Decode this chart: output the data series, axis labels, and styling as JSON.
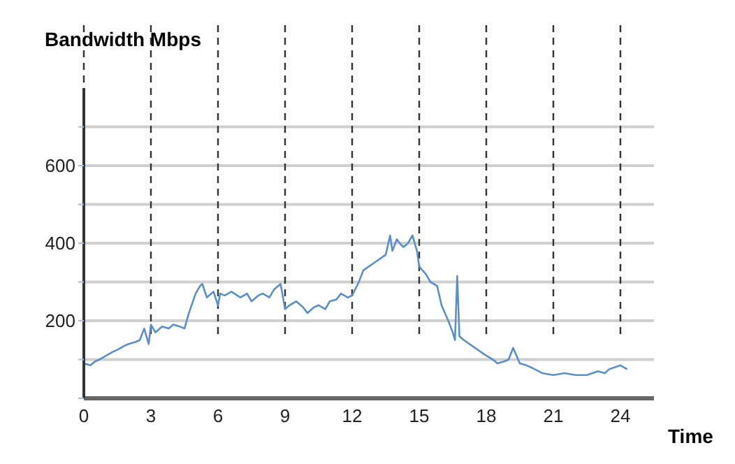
{
  "chart_data": {
    "type": "line",
    "ylabel": "Bandwidth Mbps",
    "xlabel": "Time",
    "grid": true,
    "marker": "none",
    "line_style": "solid",
    "xlim": [
      0,
      25.5
    ],
    "xticks": [
      0,
      3,
      6,
      9,
      12,
      15,
      18,
      21,
      24
    ],
    "ylim": [
      0,
      800
    ],
    "yticks": [
      {
        "value": 0,
        "label": null
      },
      {
        "value": 100,
        "label": null
      },
      200,
      {
        "value": 300,
        "label": null
      },
      400,
      {
        "value": 500,
        "label": null
      },
      600,
      {
        "value": 700,
        "label": null
      }
    ],
    "series": [
      {
        "color": "#5b8fc9",
        "x": [
          0,
          0.3,
          0.5,
          0.7,
          1,
          1.3,
          1.5,
          1.8,
          2,
          2.3,
          2.5,
          2.7,
          2.8,
          2.9,
          3,
          3.2,
          3.5,
          3.8,
          4,
          4.3,
          4.5,
          4.7,
          5,
          5.2,
          5.3,
          5.5,
          5.8,
          6,
          6.1,
          6.3,
          6.6,
          7,
          7.3,
          7.5,
          7.8,
          8,
          8.3,
          8.5,
          8.8,
          9,
          9.2,
          9.5,
          9.8,
          10,
          10.3,
          10.5,
          10.8,
          11,
          11.3,
          11.5,
          11.8,
          12,
          12.3,
          12.5,
          13,
          13.5,
          13.7,
          13.8,
          14,
          14.2,
          14.3,
          14.5,
          14.7,
          14.9,
          15,
          15.3,
          15.5,
          15.8,
          16,
          16.3,
          16.5,
          16.6,
          16.7,
          16.8,
          17,
          17.5,
          18,
          18.3,
          18.5,
          18.8,
          19,
          19.2,
          19.5,
          19.8,
          20,
          20.5,
          21,
          21.5,
          22,
          22.5,
          23,
          23.3,
          23.5,
          24,
          24.3
        ],
        "values": [
          90,
          85,
          95,
          100,
          110,
          120,
          125,
          135,
          140,
          145,
          150,
          180,
          160,
          140,
          190,
          170,
          185,
          180,
          190,
          185,
          180,
          220,
          270,
          290,
          295,
          260,
          275,
          240,
          270,
          265,
          275,
          260,
          270,
          250,
          265,
          270,
          260,
          280,
          295,
          230,
          240,
          250,
          235,
          220,
          235,
          240,
          230,
          250,
          255,
          270,
          260,
          265,
          300,
          330,
          350,
          370,
          420,
          380,
          410,
          395,
          390,
          400,
          420,
          380,
          340,
          320,
          300,
          290,
          240,
          200,
          170,
          150,
          315,
          160,
          150,
          130,
          110,
          100,
          90,
          95,
          100,
          130,
          90,
          85,
          80,
          65,
          60,
          65,
          60,
          60,
          70,
          65,
          75,
          85,
          75
        ]
      }
    ]
  }
}
